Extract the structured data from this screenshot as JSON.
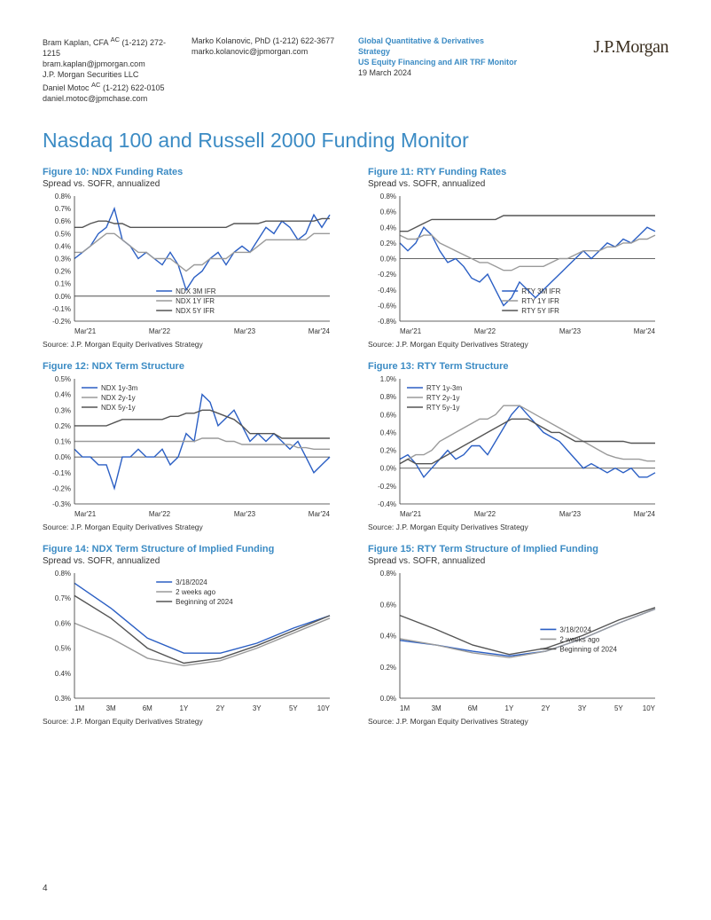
{
  "header": {
    "authors": [
      {
        "name": "Bram Kaplan, CFA",
        "sup": "AC",
        "phone": "(1-212) 272-1215",
        "email": "bram.kaplan@jpmorgan.com",
        "firm": "J.P. Morgan Securities LLC"
      },
      {
        "name": "Daniel Motoc",
        "sup": "AC",
        "phone": "(1-212) 622-0105",
        "email": "daniel.motoc@jpmchase.com",
        "firm": ""
      },
      {
        "name": "Marko Kolanovic, PhD",
        "sup": "",
        "phone": "(1-212) 622-3677",
        "email": "marko.kolanovic@jpmorgan.com",
        "firm": ""
      }
    ],
    "doc_group": "Global Quantitative & Derivatives Strategy",
    "doc_title": "US Equity Financing and AIR TRF Monitor",
    "doc_date": "19 March 2024",
    "logo": "J.P.Morgan"
  },
  "section_title": "Nasdaq 100 and Russell 2000 Funding Monitor",
  "source_text": "Source: J.P. Morgan Equity Derivatives Strategy",
  "charts": {
    "colors": {
      "series_blue": "#2b5fc4",
      "series_gray": "#9a9a9a",
      "series_dark": "#555555",
      "axis": "#333333",
      "grid": "#cccccc",
      "bg": "#ffffff"
    },
    "font_size_axis": 8,
    "font_size_legend": 8,
    "f10": {
      "title": "Figure 10: NDX Funding Rates",
      "sub": "Spread vs. SOFR, annualized",
      "xticks": [
        "Mar'21",
        "Mar'22",
        "Mar'23",
        "Mar'24"
      ],
      "ylim": [
        -0.2,
        0.8
      ],
      "ytick_step": 0.1,
      "ytick_format": "percent1",
      "legend": [
        "NDX 3M IFR",
        "NDX 1Y IFR",
        "NDX 5Y IFR"
      ],
      "legend_pos": "bottom-center",
      "series": [
        {
          "color": "series_blue",
          "data": [
            0.3,
            0.35,
            0.4,
            0.5,
            0.55,
            0.7,
            0.45,
            0.4,
            0.3,
            0.35,
            0.3,
            0.25,
            0.35,
            0.25,
            0.05,
            0.15,
            0.2,
            0.3,
            0.35,
            0.25,
            0.35,
            0.4,
            0.35,
            0.45,
            0.55,
            0.5,
            0.6,
            0.55,
            0.45,
            0.5,
            0.65,
            0.55,
            0.65
          ]
        },
        {
          "color": "series_gray",
          "data": [
            0.35,
            0.35,
            0.4,
            0.45,
            0.5,
            0.5,
            0.45,
            0.4,
            0.35,
            0.35,
            0.3,
            0.3,
            0.3,
            0.25,
            0.2,
            0.25,
            0.25,
            0.3,
            0.3,
            0.3,
            0.35,
            0.35,
            0.35,
            0.4,
            0.45,
            0.45,
            0.45,
            0.45,
            0.45,
            0.45,
            0.5,
            0.5,
            0.5
          ]
        },
        {
          "color": "series_dark",
          "data": [
            0.55,
            0.55,
            0.58,
            0.6,
            0.6,
            0.58,
            0.58,
            0.55,
            0.55,
            0.55,
            0.55,
            0.55,
            0.55,
            0.55,
            0.55,
            0.55,
            0.55,
            0.55,
            0.55,
            0.55,
            0.58,
            0.58,
            0.58,
            0.58,
            0.6,
            0.6,
            0.6,
            0.6,
            0.6,
            0.6,
            0.6,
            0.62,
            0.62
          ]
        }
      ]
    },
    "f11": {
      "title": "Figure 11: RTY Funding Rates",
      "sub": "Spread vs. SOFR, annualized",
      "xticks": [
        "Mar'21",
        "Mar'22",
        "Mar'23",
        "Mar'24"
      ],
      "ylim": [
        -0.8,
        0.8
      ],
      "ytick_step": 0.2,
      "ytick_format": "percent1",
      "legend": [
        "RTY 3M IFR",
        "RTY 1Y IFR",
        "RTY 5Y IFR"
      ],
      "legend_pos": "bottom-left",
      "series": [
        {
          "color": "series_blue",
          "data": [
            0.2,
            0.1,
            0.2,
            0.4,
            0.3,
            0.1,
            -0.05,
            0.0,
            -0.1,
            -0.25,
            -0.3,
            -0.2,
            -0.4,
            -0.6,
            -0.5,
            -0.3,
            -0.4,
            -0.5,
            -0.4,
            -0.3,
            -0.2,
            -0.1,
            0.0,
            0.1,
            0.0,
            0.1,
            0.2,
            0.15,
            0.25,
            0.2,
            0.3,
            0.4,
            0.35
          ]
        },
        {
          "color": "series_gray",
          "data": [
            0.3,
            0.25,
            0.25,
            0.3,
            0.3,
            0.2,
            0.15,
            0.1,
            0.05,
            0.0,
            -0.05,
            -0.05,
            -0.1,
            -0.15,
            -0.15,
            -0.1,
            -0.1,
            -0.1,
            -0.1,
            -0.05,
            0.0,
            0.0,
            0.05,
            0.1,
            0.1,
            0.1,
            0.15,
            0.15,
            0.2,
            0.2,
            0.25,
            0.25,
            0.3
          ]
        },
        {
          "color": "series_dark",
          "data": [
            0.35,
            0.35,
            0.4,
            0.45,
            0.5,
            0.5,
            0.5,
            0.5,
            0.5,
            0.5,
            0.5,
            0.5,
            0.5,
            0.55,
            0.55,
            0.55,
            0.55,
            0.55,
            0.55,
            0.55,
            0.55,
            0.55,
            0.55,
            0.55,
            0.55,
            0.55,
            0.55,
            0.55,
            0.55,
            0.55,
            0.55,
            0.55,
            0.55
          ]
        }
      ]
    },
    "f12": {
      "title": "Figure 12: NDX Term Structure",
      "sub": "",
      "xticks": [
        "Mar'21",
        "Mar'22",
        "Mar'23",
        "Mar'24"
      ],
      "ylim": [
        -0.3,
        0.5
      ],
      "ytick_step": 0.1,
      "ytick_format": "percent1",
      "legend": [
        "NDX 1y-3m",
        "NDX 2y-1y",
        "NDX 5y-1y"
      ],
      "legend_pos": "top-left",
      "series": [
        {
          "color": "series_blue",
          "data": [
            0.05,
            0.0,
            0.0,
            -0.05,
            -0.05,
            -0.2,
            0.0,
            0.0,
            0.05,
            0.0,
            0.0,
            0.05,
            -0.05,
            0.0,
            0.15,
            0.1,
            0.4,
            0.35,
            0.2,
            0.25,
            0.3,
            0.2,
            0.1,
            0.15,
            0.1,
            0.15,
            0.1,
            0.05,
            0.1,
            0.0,
            -0.1,
            -0.05,
            0.0
          ]
        },
        {
          "color": "series_gray",
          "data": [
            0.1,
            0.1,
            0.1,
            0.1,
            0.1,
            0.1,
            0.1,
            0.1,
            0.1,
            0.1,
            0.1,
            0.1,
            0.1,
            0.1,
            0.1,
            0.1,
            0.12,
            0.12,
            0.12,
            0.1,
            0.1,
            0.08,
            0.08,
            0.08,
            0.08,
            0.08,
            0.08,
            0.08,
            0.06,
            0.06,
            0.05,
            0.05,
            0.05
          ]
        },
        {
          "color": "series_dark",
          "data": [
            0.2,
            0.2,
            0.2,
            0.2,
            0.2,
            0.22,
            0.24,
            0.24,
            0.24,
            0.24,
            0.24,
            0.24,
            0.26,
            0.26,
            0.28,
            0.28,
            0.3,
            0.3,
            0.28,
            0.26,
            0.24,
            0.2,
            0.15,
            0.15,
            0.15,
            0.15,
            0.12,
            0.12,
            0.12,
            0.12,
            0.12,
            0.12,
            0.12
          ]
        }
      ]
    },
    "f13": {
      "title": "Figure 13: RTY Term Structure",
      "sub": "",
      "xticks": [
        "Mar'21",
        "Mar'22",
        "Mar'23",
        "Mar'24"
      ],
      "ylim": [
        -0.4,
        1.0
      ],
      "ytick_step": 0.2,
      "ytick_format": "percent1",
      "legend": [
        "RTY 1y-3m",
        "RTY 2y-1y",
        "RTY 5y-1y"
      ],
      "legend_pos": "top-left",
      "series": [
        {
          "color": "series_blue",
          "data": [
            0.1,
            0.15,
            0.05,
            -0.1,
            0.0,
            0.1,
            0.2,
            0.1,
            0.15,
            0.25,
            0.25,
            0.15,
            0.3,
            0.45,
            0.6,
            0.7,
            0.6,
            0.5,
            0.4,
            0.35,
            0.3,
            0.2,
            0.1,
            0.0,
            0.05,
            0.0,
            -0.05,
            0.0,
            -0.05,
            0.0,
            -0.1,
            -0.1,
            -0.05
          ]
        },
        {
          "color": "series_gray",
          "data": [
            0.05,
            0.1,
            0.15,
            0.15,
            0.2,
            0.3,
            0.35,
            0.4,
            0.45,
            0.5,
            0.55,
            0.55,
            0.6,
            0.7,
            0.7,
            0.7,
            0.65,
            0.6,
            0.55,
            0.5,
            0.45,
            0.4,
            0.35,
            0.3,
            0.25,
            0.2,
            0.15,
            0.12,
            0.1,
            0.1,
            0.1,
            0.08,
            0.08
          ]
        },
        {
          "color": "series_dark",
          "data": [
            0.05,
            0.1,
            0.05,
            0.05,
            0.05,
            0.1,
            0.15,
            0.2,
            0.25,
            0.3,
            0.35,
            0.4,
            0.45,
            0.5,
            0.55,
            0.55,
            0.55,
            0.5,
            0.45,
            0.4,
            0.4,
            0.35,
            0.3,
            0.3,
            0.3,
            0.3,
            0.3,
            0.3,
            0.3,
            0.28,
            0.28,
            0.28,
            0.28
          ]
        }
      ]
    },
    "f14": {
      "title": "Figure 14: NDX Term Structure of Implied Funding",
      "sub": "Spread vs. SOFR, annualized",
      "xticks": [
        "1M",
        "3M",
        "6M",
        "1Y",
        "2Y",
        "3Y",
        "5Y",
        "10Y"
      ],
      "ylim": [
        0.3,
        0.8
      ],
      "ytick_step": 0.1,
      "ytick_format": "percent1",
      "legend": [
        "3/18/2024",
        "2 weeks ago",
        "Beginning of 2024"
      ],
      "legend_pos": "top-center",
      "series": [
        {
          "color": "series_blue",
          "data": [
            0.76,
            0.66,
            0.54,
            0.48,
            0.48,
            0.52,
            0.58,
            0.63
          ]
        },
        {
          "color": "series_gray",
          "data": [
            0.6,
            0.54,
            0.46,
            0.43,
            0.45,
            0.5,
            0.56,
            0.62
          ]
        },
        {
          "color": "series_dark",
          "data": [
            0.71,
            0.62,
            0.5,
            0.44,
            0.46,
            0.51,
            0.57,
            0.63
          ]
        }
      ]
    },
    "f15": {
      "title": "Figure 15: RTY Term Structure of Implied Funding",
      "sub": "Spread vs. SOFR, annualized",
      "xticks": [
        "1M",
        "3M",
        "6M",
        "1Y",
        "2Y",
        "3Y",
        "5Y",
        "10Y"
      ],
      "ylim": [
        0.0,
        0.8
      ],
      "ytick_step": 0.2,
      "ytick_format": "percent1",
      "legend": [
        "3/18/2024",
        "2 weeks ago",
        "Beginning of 2024"
      ],
      "legend_pos": "mid-right",
      "series": [
        {
          "color": "series_blue",
          "data": [
            0.37,
            0.34,
            0.3,
            0.27,
            0.3,
            0.38,
            0.48,
            0.57
          ]
        },
        {
          "color": "series_gray",
          "data": [
            0.38,
            0.34,
            0.29,
            0.26,
            0.3,
            0.38,
            0.48,
            0.57
          ]
        },
        {
          "color": "series_dark",
          "data": [
            0.53,
            0.44,
            0.34,
            0.28,
            0.32,
            0.4,
            0.5,
            0.58
          ]
        }
      ]
    }
  },
  "page_number": "4"
}
